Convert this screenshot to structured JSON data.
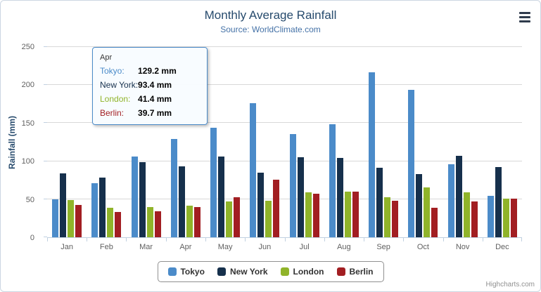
{
  "header": {
    "title": "Monthly Average Rainfall",
    "subtitle": "Source: WorldClimate.com"
  },
  "chart_data": {
    "type": "bar",
    "title": "Monthly Average Rainfall",
    "subtitle": "Source: WorldClimate.com",
    "xlabel": "",
    "ylabel": "Rainfall (mm)",
    "ylim": [
      0,
      250
    ],
    "ytick_interval": 50,
    "grid": true,
    "legend_position": "bottom",
    "categories": [
      "Jan",
      "Feb",
      "Mar",
      "Apr",
      "May",
      "Jun",
      "Jul",
      "Aug",
      "Sep",
      "Oct",
      "Nov",
      "Dec"
    ],
    "series": [
      {
        "name": "Tokyo",
        "color": "#4B8BC9",
        "values": [
          49.9,
          71.5,
          106.4,
          129.2,
          144.0,
          176.0,
          135.6,
          148.5,
          216.4,
          194.1,
          95.6,
          54.4
        ]
      },
      {
        "name": "New York",
        "color": "#16304C",
        "values": [
          83.6,
          78.8,
          98.5,
          93.4,
          106.0,
          84.5,
          105.0,
          104.3,
          91.2,
          83.5,
          106.6,
          92.3
        ]
      },
      {
        "name": "London",
        "color": "#90B42A",
        "values": [
          48.9,
          38.8,
          39.3,
          41.4,
          47.0,
          48.3,
          59.0,
          59.6,
          52.4,
          65.2,
          59.3,
          51.2
        ]
      },
      {
        "name": "Berlin",
        "color": "#A21E22",
        "values": [
          42.4,
          33.2,
          34.5,
          39.7,
          52.6,
          75.5,
          57.4,
          60.4,
          47.6,
          39.1,
          46.8,
          51.1
        ]
      }
    ]
  },
  "tooltip": {
    "header": "Apr",
    "rows": [
      {
        "name": "Tokyo:",
        "value": "129.2 mm"
      },
      {
        "name": "New York:",
        "value": "93.4 mm"
      },
      {
        "name": "London:",
        "value": "41.4 mm"
      },
      {
        "name": "Berlin:",
        "value": "39.7 mm"
      }
    ]
  },
  "icons": {
    "context_menu": "hamburger-icon"
  },
  "credit": "Highcharts.com",
  "colors": {
    "title": "#274B6D",
    "subtitle": "#4572A7",
    "axis_label": "#606060",
    "grid_line": "#D8D8D8",
    "axis_line": "#C0D0E0",
    "tooltip_border": "#4B8BC9",
    "legend_border": "#909090"
  }
}
